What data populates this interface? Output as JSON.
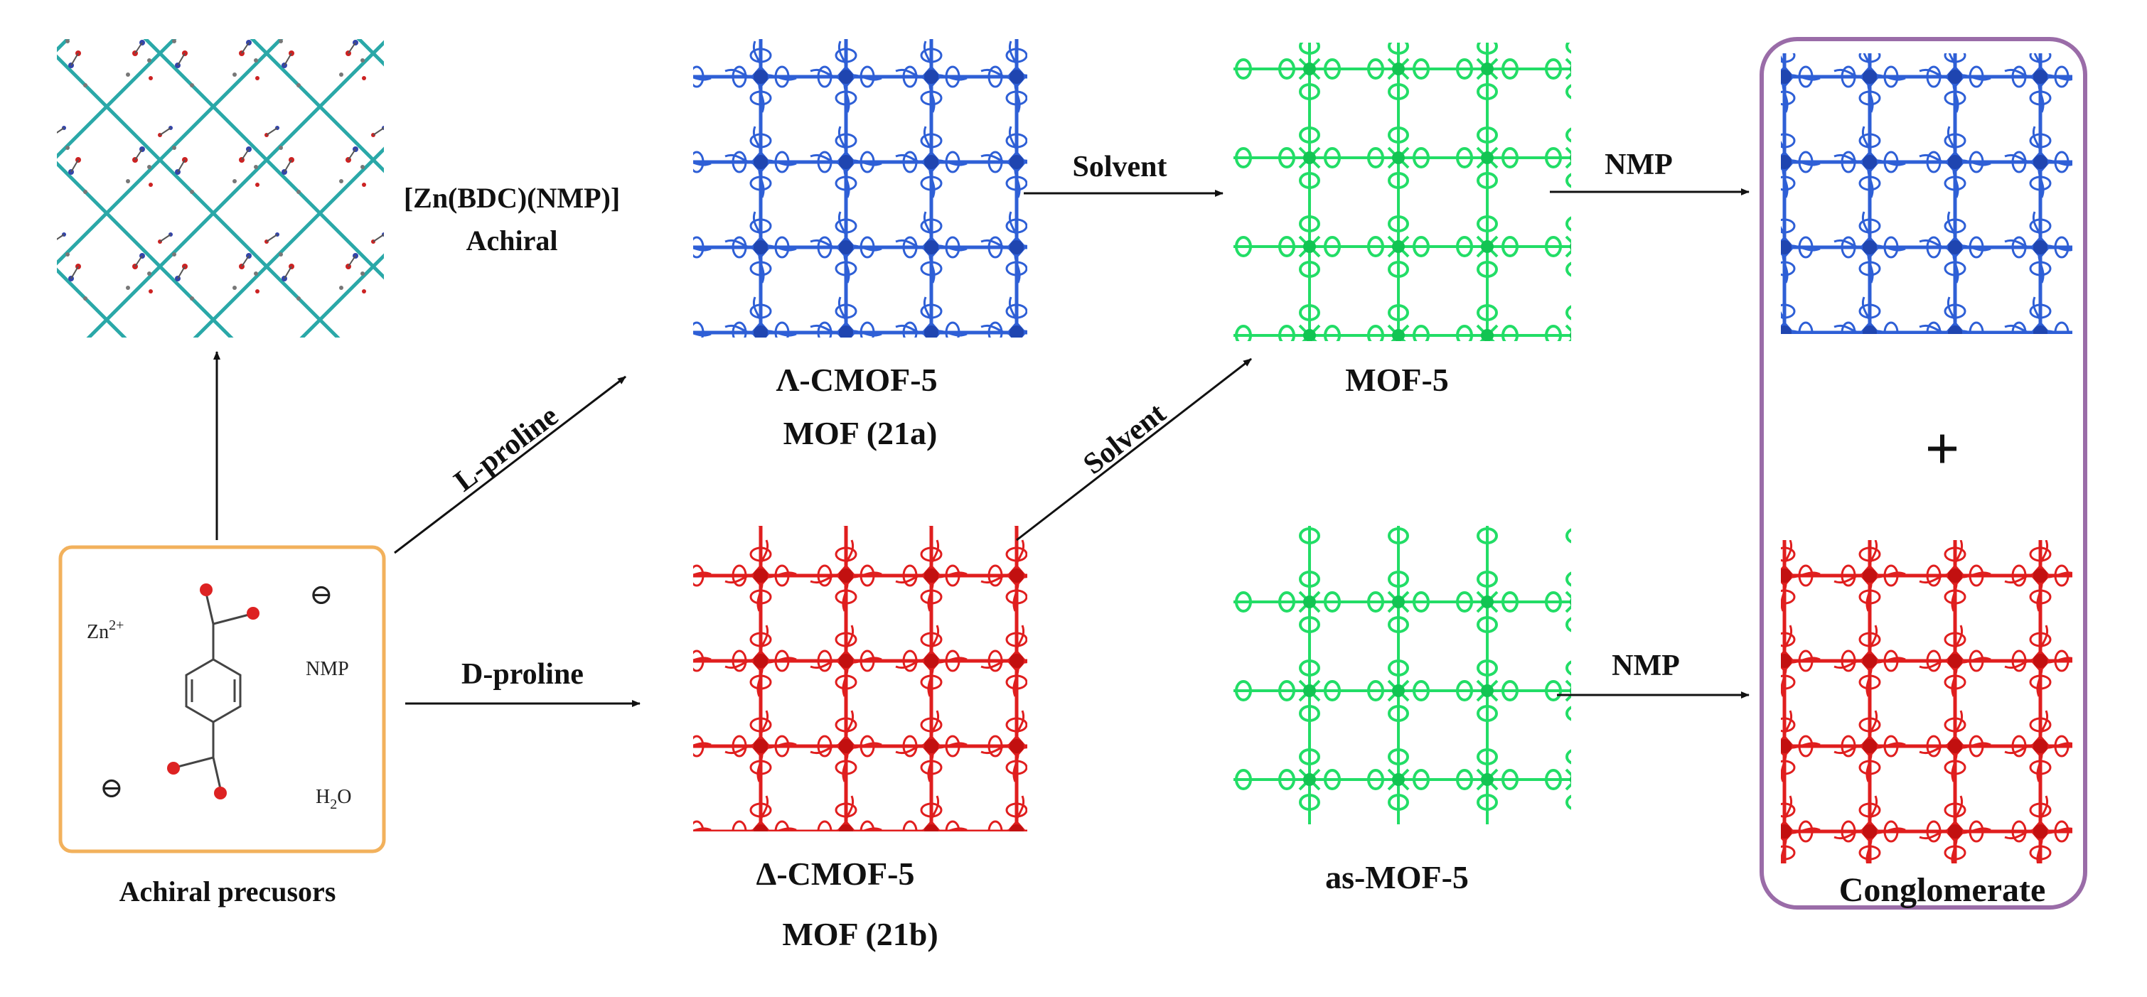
{
  "labels": {
    "achiral_precursors": "Achiral precusors",
    "zn_bdc_nmp": "[Zn(BDC)(NMP)]",
    "achiral": "Achiral",
    "lambda_cmof": "Λ-CMOF-5",
    "mof_21a": "MOF (21a)",
    "delta_cmof": "Δ-CMOF-5",
    "mof_21b": "MOF (21b)",
    "mof5": "MOF-5",
    "as_mof5": "as-MOF-5",
    "conglomerate": "Conglomerate",
    "plus": "+"
  },
  "arrows": {
    "l_proline": "L-proline",
    "d_proline": "D-proline",
    "solvent_top": "Solvent",
    "solvent_diag": "Solvent",
    "nmp_top": "NMP",
    "nmp_bottom": "NMP"
  },
  "precursor_box": {
    "zn_ion": "Zn",
    "zn_charge": "2+",
    "nmp": "NMP",
    "water_h": "H",
    "water_sub": "2",
    "water_o": "O",
    "minus": "⊖"
  },
  "colors": {
    "lambda": "#2e5fd6",
    "delta": "#e01e1e",
    "mof5": "#22dd66",
    "achiral_net": "#2aa8a8",
    "precursor_border": "#f2b15c",
    "conglomerate_border": "#9a6ca8"
  }
}
